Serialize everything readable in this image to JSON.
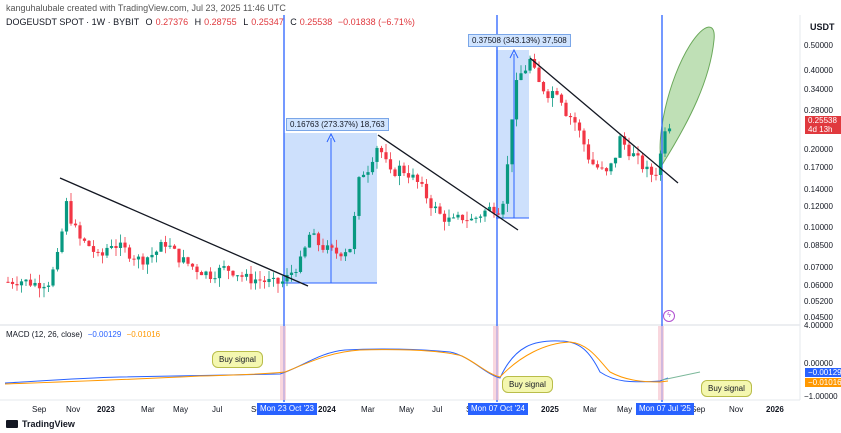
{
  "header": {
    "line1": "kanguhalubale created with TradingView.com, Jul 23, 2025 11:46 UTC",
    "symbol": "DOGEUSDT SPOT · 1W · BYBIT",
    "ohlc": [
      {
        "k": "O",
        "v": "0.27376"
      },
      {
        "k": "H",
        "v": "0.28755"
      },
      {
        "k": "L",
        "v": "0.25347"
      },
      {
        "k": "C",
        "v": "0.25538"
      },
      {
        "k": "",
        "v": "−0.01838 (−6.71%)"
      }
    ]
  },
  "currency": "USDT",
  "brand": "TradingView",
  "price_tag": {
    "price": "0.25538",
    "countdown": "4d 13h",
    "color": "#e0393e"
  },
  "measures": [
    {
      "label": "0.16763 (273.37%) 18,763"
    },
    {
      "label": "0.37508 (343.13%) 37,508"
    }
  ],
  "macd": {
    "title": "MACD (12, 26, close)",
    "macd_value": "−0.00129",
    "signal_value": "−0.01016",
    "axis": [
      "4.00000",
      "0.00000",
      "−1.00000"
    ],
    "macd_color": "#2962ff",
    "signal_color": "#ff9800"
  },
  "buy_label": "Buy signal",
  "date_labels": [
    "Mon 23 Oct '23",
    "Mon 07 Oct '24",
    "Mon 07 Jul '25"
  ],
  "colors": {
    "up": "#089981",
    "down": "#f23645",
    "vline": "#2962ff",
    "measure_fill": "#d0e4ff",
    "forecast": "#8bc77a"
  },
  "chart_data": {
    "type": "candlestick",
    "symbol": "DOGEUSDT",
    "y_scale": "log",
    "y_ticks": [
      "0.50000",
      "0.40000",
      "0.34000",
      "0.28000",
      "0.20000",
      "0.17000",
      "0.14000",
      "0.12000",
      "0.10000",
      "0.08500",
      "0.07000",
      "0.06000",
      "0.05200",
      "0.04500"
    ],
    "x_ticks": [
      "Sep",
      "Nov",
      "2023",
      "Mar",
      "May",
      "Jul",
      "Sep",
      "Nov",
      "2024",
      "Mar",
      "May",
      "Jul",
      "Sep",
      "Nov",
      "2025",
      "Mar",
      "May",
      "Jul",
      "Sep",
      "Nov",
      "2026",
      "Ma"
    ],
    "x_ticks_bold": [
      "2023",
      "2024",
      "2025",
      "2026"
    ],
    "trendlines": [
      {
        "from": {
          "date": "2022-10",
          "price": 0.155
        },
        "to": {
          "date": "2023-10",
          "price": 0.061
        }
      },
      {
        "from": {
          "date": "2024-03",
          "price": 0.22
        },
        "to": {
          "date": "2024-10",
          "price": 0.105
        }
      },
      {
        "from": {
          "date": "2024-12",
          "price": 0.47
        },
        "to": {
          "date": "2025-07",
          "price": 0.15
        }
      }
    ],
    "measure_ranges": [
      {
        "from_date": "2023-10",
        "to_date": "2024-03",
        "low": 0.0615,
        "high": 0.229,
        "change": "0.16763 (273.37%) 18,763"
      },
      {
        "from_date": "2024-10",
        "to_date": "2024-12",
        "low": 0.109,
        "high": 0.484,
        "change": "0.37508 (343.13%) 37,508"
      }
    ],
    "signals": [
      {
        "date": "2023-10-23",
        "label": "Buy signal"
      },
      {
        "date": "2024-10-07",
        "label": "Buy signal"
      },
      {
        "date": "2025-07-07",
        "label": "Buy signal"
      }
    ],
    "last": {
      "open": 0.27376,
      "high": 0.28755,
      "low": 0.25347,
      "close": 0.25538,
      "change": -0.01838,
      "change_pct": -6.71
    }
  }
}
